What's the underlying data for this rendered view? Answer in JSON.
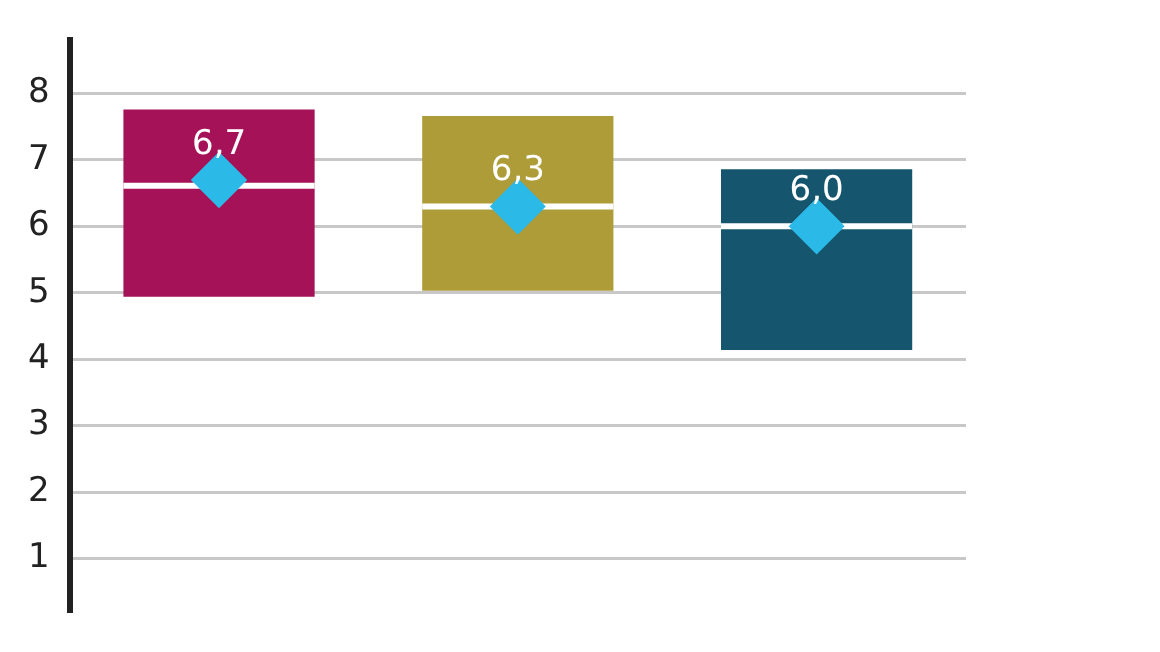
{
  "chart_data": {
    "type": "box",
    "categories": [
      null,
      null,
      null
    ],
    "boxes": [
      {
        "low": 4.94,
        "q1": 4.94,
        "median": 6.61,
        "q3": 7.76,
        "high": 7.76,
        "mean": 6.7
      },
      {
        "low": 5.03,
        "q1": 5.03,
        "median": 6.3,
        "q3": 7.66,
        "high": 7.66,
        "mean": 6.3
      },
      {
        "low": 4.14,
        "q1": 4.14,
        "median": 6.0,
        "q3": 6.86,
        "high": 6.86,
        "mean": 6.0
      }
    ],
    "colors": [
      "#a51257",
      "#ad9c37",
      "#15566e"
    ],
    "annotations": [
      {
        "text": "6,7",
        "y": 6.7
      },
      {
        "text": "6,3",
        "y": 6.3
      },
      {
        "text": "6,0",
        "y": 6.0
      }
    ],
    "marker": "diamond",
    "ylim": [
      0.2,
      8.8
    ],
    "yticks": [
      1,
      2,
      3,
      4,
      5,
      6,
      7,
      8
    ],
    "grid": "y"
  }
}
